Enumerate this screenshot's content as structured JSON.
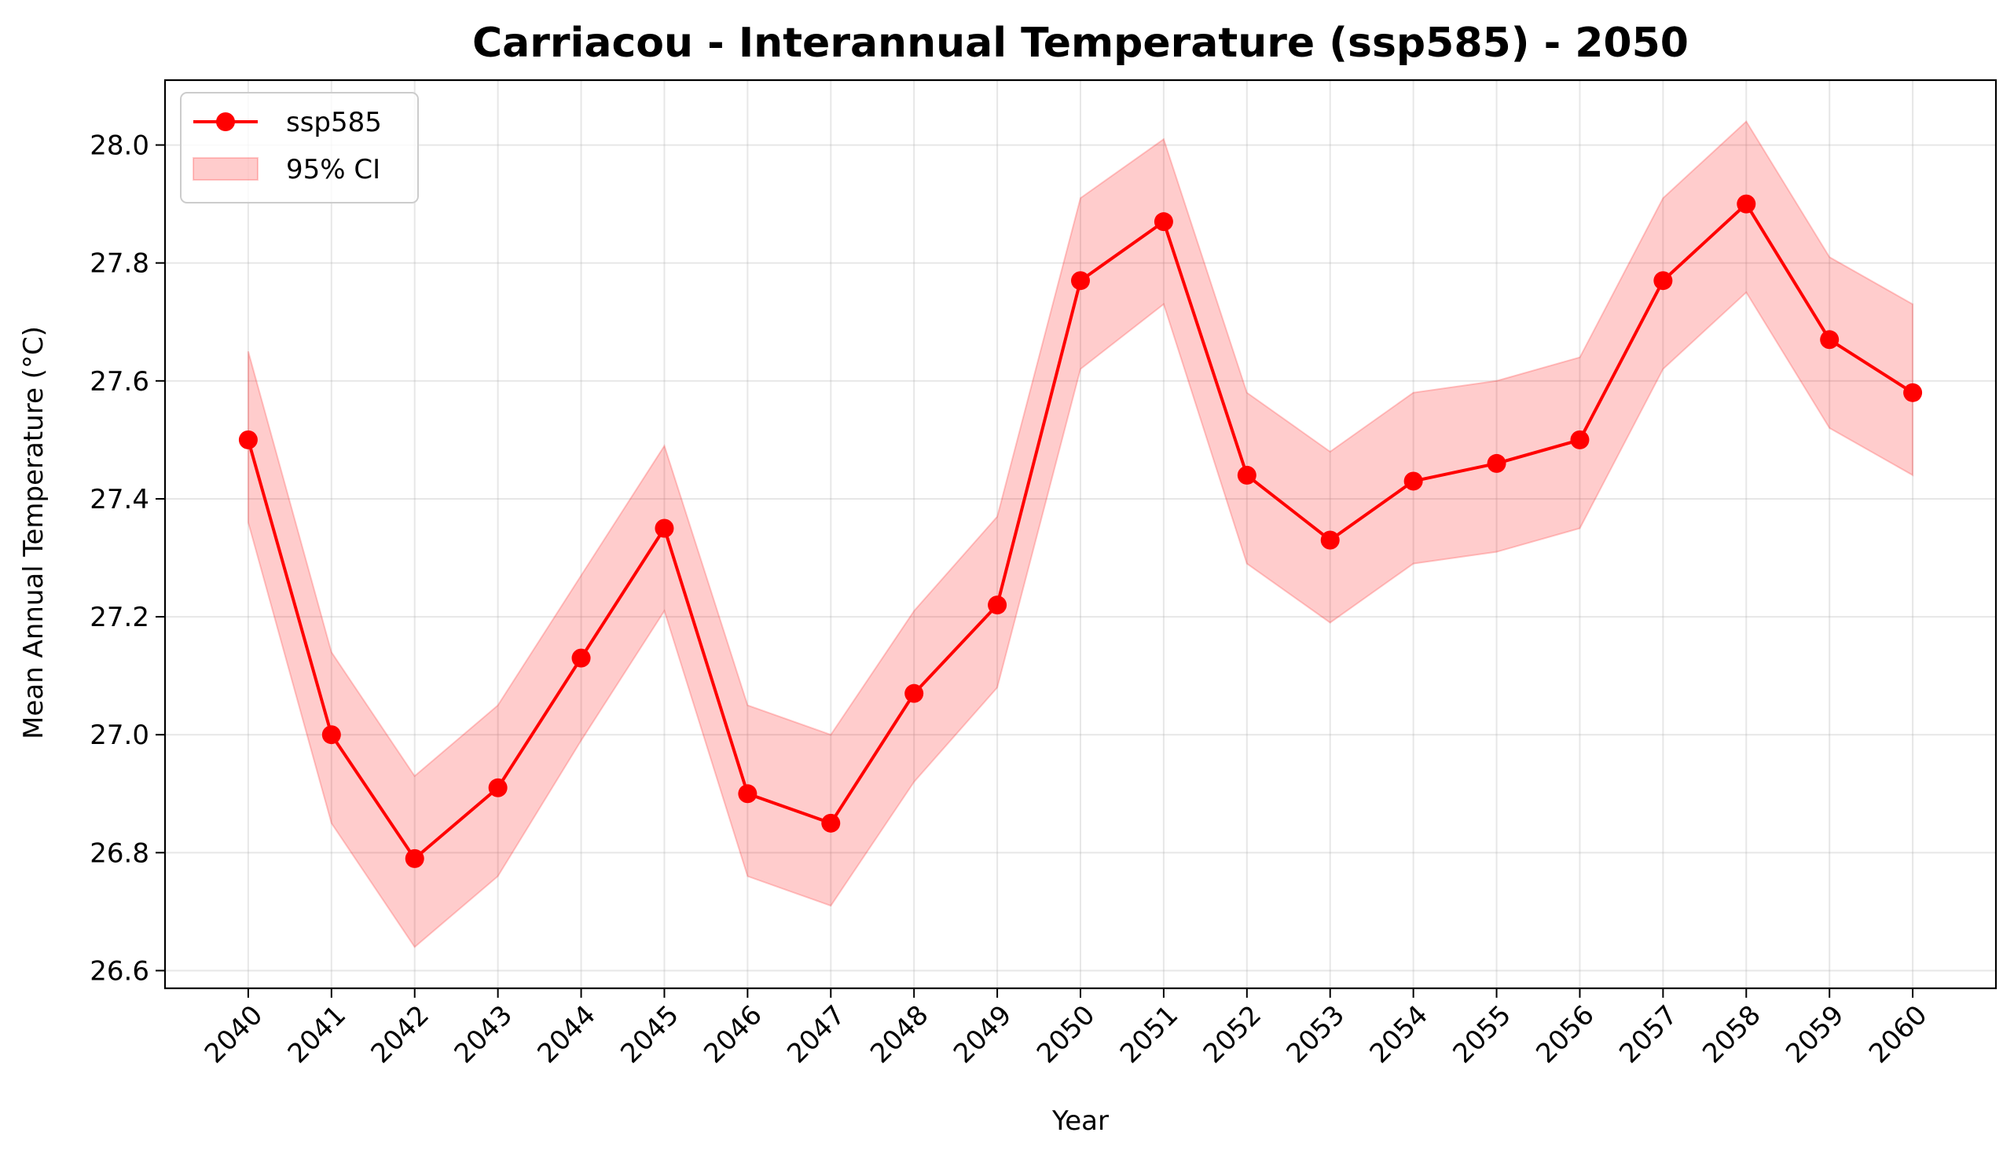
{
  "chart_data": {
    "type": "line",
    "title": "Carriacou - Interannual Temperature (ssp585) - 2050",
    "xlabel": "Year",
    "ylabel": "Mean Annual Temperature (°C)",
    "x": [
      2040,
      2041,
      2042,
      2043,
      2044,
      2045,
      2046,
      2047,
      2048,
      2049,
      2050,
      2051,
      2052,
      2053,
      2054,
      2055,
      2056,
      2057,
      2058,
      2059,
      2060
    ],
    "x_tick_labels": [
      "2040",
      "2041",
      "2042",
      "2043",
      "2044",
      "2045",
      "2046",
      "2047",
      "2048",
      "2049",
      "2050",
      "2051",
      "2052",
      "2053",
      "2054",
      "2055",
      "2056",
      "2057",
      "2058",
      "2059",
      "2060"
    ],
    "ylim": [
      26.57,
      28.11
    ],
    "y_ticks": [
      26.6,
      26.8,
      27.0,
      27.2,
      27.4,
      27.6,
      27.8,
      28.0
    ],
    "y_tick_labels": [
      "26.6",
      "26.8",
      "27.0",
      "27.2",
      "27.4",
      "27.6",
      "27.8",
      "28.0"
    ],
    "series": [
      {
        "name": "ssp585",
        "color": "#ff0000",
        "values": [
          27.5,
          27.0,
          26.79,
          26.91,
          27.13,
          27.35,
          26.9,
          26.85,
          27.07,
          27.22,
          27.77,
          27.87,
          27.44,
          27.33,
          27.43,
          27.46,
          27.5,
          27.77,
          27.9,
          27.67,
          27.58
        ]
      }
    ],
    "ci": {
      "name": "95% CI",
      "color": "#ff0000",
      "lower": [
        27.36,
        26.85,
        26.64,
        26.76,
        26.99,
        27.21,
        26.76,
        26.71,
        26.92,
        27.08,
        27.62,
        27.73,
        27.29,
        27.19,
        27.29,
        27.31,
        27.35,
        27.62,
        27.75,
        27.52,
        27.44
      ],
      "upper": [
        27.65,
        27.14,
        26.93,
        27.05,
        27.27,
        27.49,
        27.05,
        27.0,
        27.21,
        27.37,
        27.91,
        28.01,
        27.58,
        27.48,
        27.58,
        27.6,
        27.64,
        27.91,
        28.04,
        27.81,
        27.73
      ]
    },
    "grid": true,
    "legend": "top-left"
  }
}
